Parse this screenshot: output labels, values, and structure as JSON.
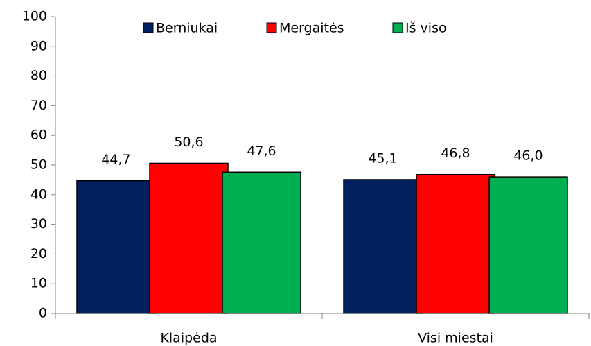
{
  "chart_data": {
    "type": "bar",
    "categories": [
      "Klaipėda",
      "Visi miestai"
    ],
    "series": [
      {
        "name": "Berniukai",
        "color": "#002060",
        "values": [
          44.7,
          45.1
        ],
        "value_labels": [
          "44,7",
          "45,1"
        ]
      },
      {
        "name": "Mergaitės",
        "color": "#ff0000",
        "values": [
          50.6,
          46.8
        ],
        "value_labels": [
          "50,6",
          "46,8"
        ]
      },
      {
        "name": "Iš viso",
        "color": "#00b050",
        "values": [
          47.6,
          46.0
        ],
        "value_labels": [
          "47,6",
          "46,0"
        ]
      }
    ],
    "ylim": [
      0,
      100
    ],
    "yticks": [
      0,
      10,
      20,
      30,
      40,
      50,
      60,
      70,
      80,
      90,
      100
    ],
    "grid": false,
    "legend": "top"
  }
}
